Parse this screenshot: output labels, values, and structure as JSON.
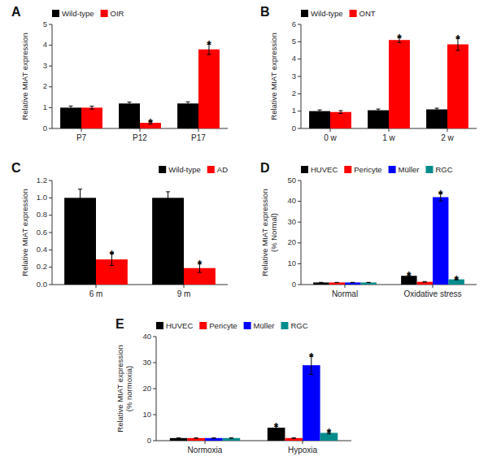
{
  "chart_data": [
    {
      "type": "bar",
      "title": "A",
      "categories": [
        "P7",
        "P12",
        "P17"
      ],
      "series": [
        {
          "name": "Wild-type",
          "color": "#000000",
          "values": [
            1.0,
            1.2,
            1.2
          ],
          "errors": [
            0.08,
            0.07,
            0.08
          ]
        },
        {
          "name": "OIR",
          "color": "#FF0000",
          "values": [
            1.0,
            0.27,
            3.8
          ],
          "errors": [
            0.07,
            0.06,
            0.25
          ]
        }
      ],
      "ylim": [
        0,
        5
      ],
      "yticks": [
        0,
        1,
        2,
        3,
        4,
        5
      ],
      "ylabel": "Relative MIAT expression",
      "legend": "upper left",
      "annotations": [
        {
          "text": "*",
          "category": "P12",
          "series": "OIR"
        },
        {
          "text": "*",
          "category": "P17",
          "series": "OIR"
        }
      ]
    },
    {
      "type": "bar",
      "title": "B",
      "categories": [
        "0 w",
        "1 w",
        "2 w"
      ],
      "series": [
        {
          "name": "Wild-type",
          "color": "#000000",
          "values": [
            1.0,
            1.05,
            1.1
          ],
          "errors": [
            0.07,
            0.07,
            0.07
          ]
        },
        {
          "name": "ONT",
          "color": "#FF0000",
          "values": [
            0.95,
            5.1,
            4.85
          ],
          "errors": [
            0.08,
            0.15,
            0.35
          ]
        }
      ],
      "ylim": [
        0,
        6
      ],
      "yticks": [
        0,
        1,
        2,
        3,
        4,
        5,
        6
      ],
      "ylabel": "Relative MIAT expression",
      "legend": "upper left",
      "annotations": [
        {
          "text": "*",
          "category": "1 w",
          "series": "ONT"
        },
        {
          "text": "*",
          "category": "2 w",
          "series": "ONT"
        }
      ]
    },
    {
      "type": "bar",
      "title": "C",
      "categories": [
        "6 m",
        "9 m"
      ],
      "series": [
        {
          "name": "Wild-type",
          "color": "#000000",
          "values": [
            1.0,
            1.0
          ],
          "errors": [
            0.1,
            0.07
          ]
        },
        {
          "name": "AD",
          "color": "#FF0000",
          "values": [
            0.29,
            0.19
          ],
          "errors": [
            0.07,
            0.05
          ]
        }
      ],
      "ylim": [
        0,
        1.2
      ],
      "yticks": [
        {
          "value": 0,
          "label": "0.0"
        },
        0.2,
        0.4,
        0.6,
        0.8,
        {
          "value": 1,
          "label": "1.0"
        },
        1.2
      ],
      "ylabel": "Relative MIAT expression",
      "legend": "upper right",
      "annotations": [
        {
          "text": "*",
          "category": "6 m",
          "series": "AD"
        },
        {
          "text": "*",
          "category": "9 m",
          "series": "AD"
        }
      ]
    },
    {
      "type": "bar",
      "title": "D",
      "categories": [
        "Normal",
        "Oxidative stress"
      ],
      "series": [
        {
          "name": "HUVEC",
          "color": "#000000",
          "values": [
            1.0,
            4.2
          ],
          "errors": [
            0.05,
            0.4
          ]
        },
        {
          "name": "Pericyte",
          "color": "#FF0000",
          "values": [
            1.0,
            1.3
          ],
          "errors": [
            0.05,
            0.15
          ]
        },
        {
          "name": "Müller",
          "color": "#0000FF",
          "values": [
            1.0,
            42.0
          ],
          "errors": [
            0.05,
            1.8
          ]
        },
        {
          "name": "RGC",
          "color": "#008B8B",
          "values": [
            1.0,
            2.5
          ],
          "errors": [
            0.05,
            0.25
          ]
        }
      ],
      "ylim": [
        0,
        50
      ],
      "yticks": [
        0,
        10,
        20,
        30,
        40,
        50
      ],
      "ylabel": "Relative MIAT expression\n(% Normal)",
      "legend": "upper left",
      "annotations": [
        {
          "text": "*",
          "category": "Oxidative stress",
          "series": "HUVEC"
        },
        {
          "text": "*",
          "category": "Oxidative stress",
          "series": "Müller"
        },
        {
          "text": "*",
          "category": "Oxidative stress",
          "series": "RGC"
        }
      ]
    },
    {
      "type": "bar",
      "title": "E",
      "categories": [
        "Normoxia",
        "Hypoxia"
      ],
      "series": [
        {
          "name": "HUVEC",
          "color": "#000000",
          "values": [
            1.0,
            5.0
          ],
          "errors": [
            0.05,
            0.5
          ]
        },
        {
          "name": "Pericyte",
          "color": "#FF0000",
          "values": [
            1.0,
            1.0
          ],
          "errors": [
            0.05,
            0.1
          ]
        },
        {
          "name": "Müller",
          "color": "#0000FF",
          "values": [
            1.0,
            29.0
          ],
          "errors": [
            0.05,
            3.5
          ]
        },
        {
          "name": "RGC",
          "color": "#008B8B",
          "values": [
            1.0,
            3.0
          ],
          "errors": [
            0.05,
            0.4
          ]
        }
      ],
      "ylim": [
        0,
        40
      ],
      "yticks": [
        0,
        10,
        20,
        30,
        40
      ],
      "ylabel": "Relative MIAT expression\n(% normoxia)",
      "legend": "upper left",
      "annotations": [
        {
          "text": "*",
          "category": "Hypoxia",
          "series": "HUVEC"
        },
        {
          "text": "*",
          "category": "Hypoxia",
          "series": "Müller"
        },
        {
          "text": "*",
          "category": "Hypoxia",
          "series": "RGC"
        }
      ]
    }
  ]
}
